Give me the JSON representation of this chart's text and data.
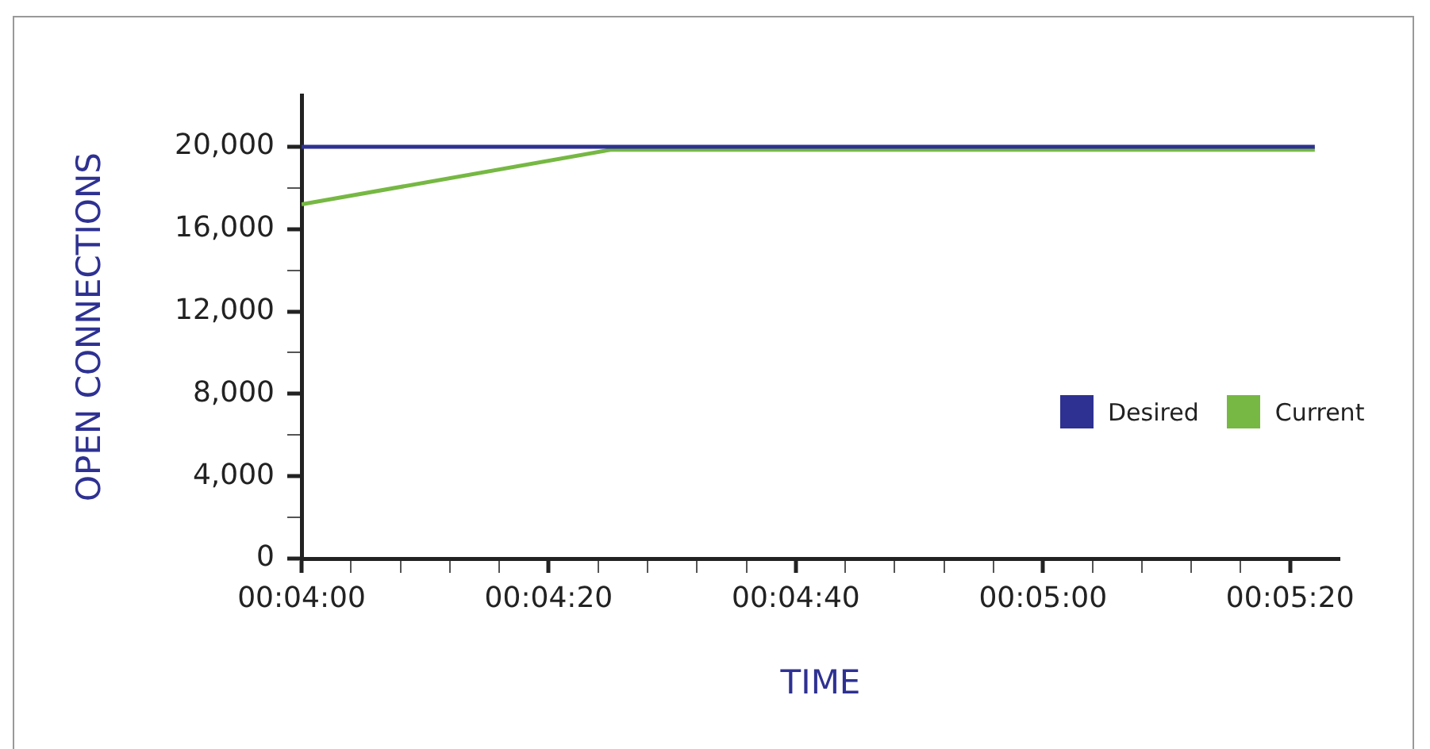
{
  "chart_data": {
    "type": "line",
    "xlabel": "TIME",
    "ylabel": "OPEN CONNECTIONS",
    "xlim": [
      240,
      324
    ],
    "xticks": [
      {
        "value": 240,
        "label": "00:04:00"
      },
      {
        "value": 244,
        "label": null
      },
      {
        "value": 248,
        "label": null
      },
      {
        "value": 252,
        "label": null
      },
      {
        "value": 256,
        "label": null
      },
      {
        "value": 260,
        "label": "00:04:20"
      },
      {
        "value": 264,
        "label": null
      },
      {
        "value": 268,
        "label": null
      },
      {
        "value": 272,
        "label": null
      },
      {
        "value": 276,
        "label": null
      },
      {
        "value": 280,
        "label": "00:04:40"
      },
      {
        "value": 284,
        "label": null
      },
      {
        "value": 288,
        "label": null
      },
      {
        "value": 292,
        "label": null
      },
      {
        "value": 296,
        "label": null
      },
      {
        "value": 300,
        "label": "00:05:00"
      },
      {
        "value": 304,
        "label": null
      },
      {
        "value": 308,
        "label": null
      },
      {
        "value": 312,
        "label": null
      },
      {
        "value": 316,
        "label": null
      },
      {
        "value": 320,
        "label": "00:05:20"
      }
    ],
    "ylim": [
      0,
      22500
    ],
    "yticks": [
      0,
      {
        "value": 2000,
        "label": null
      },
      {
        "value": 4000,
        "label": "4,000"
      },
      {
        "value": 6000,
        "label": null
      },
      {
        "value": 8000,
        "label": "8,000"
      },
      {
        "value": 10000,
        "label": null
      },
      {
        "value": 12000,
        "label": "12,000"
      },
      {
        "value": 14000,
        "label": null
      },
      {
        "value": 16000,
        "label": "16,000"
      },
      {
        "value": 18000,
        "label": null
      },
      {
        "value": 20000,
        "label": "20,000"
      }
    ],
    "series": [
      {
        "name": "Desired",
        "color": "#2e3192",
        "x": [
          240,
          322
        ],
        "values": [
          20000,
          20000
        ]
      },
      {
        "name": "Current",
        "color": "#76b843",
        "x": [
          240,
          265,
          322
        ],
        "values": [
          17200,
          19850,
          19850
        ]
      }
    ],
    "legend": "right",
    "grid": false,
    "marker": "none",
    "line_style": "solid"
  }
}
